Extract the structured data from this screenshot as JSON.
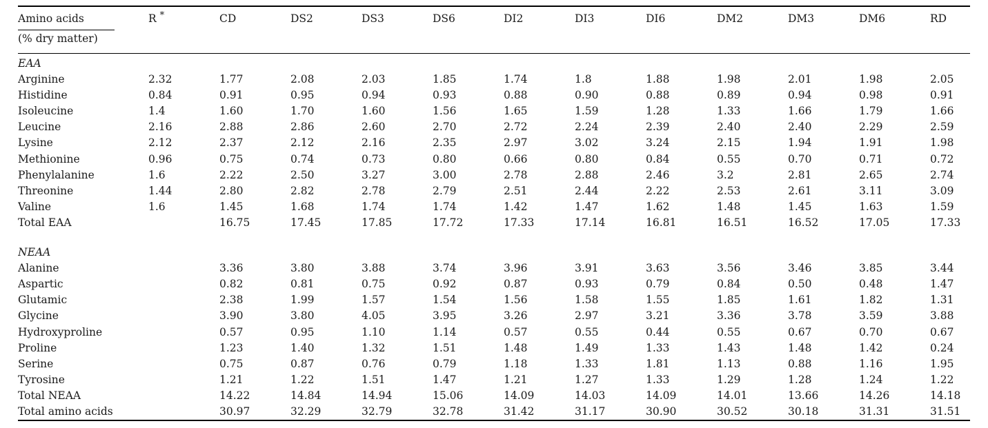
{
  "table": {
    "first_col_header": "Amino acids",
    "first_col_subheader": "(% dry matter)",
    "r_header_base": "R",
    "r_header_mark": "*",
    "column_headers": [
      "R *",
      "CD",
      "DS2",
      "DS3",
      "DS6",
      "DI2",
      "DI3",
      "DI6",
      "DM2",
      "DM3",
      "DM6",
      "RD"
    ],
    "sections": [
      {
        "label": "EAA",
        "rows": [
          {
            "name": "Arginine",
            "values": [
              "2.32",
              "1.77",
              "2.08",
              "2.03",
              "1.85",
              "1.74",
              "1.8",
              "1.88",
              "1.98",
              "2.01",
              "1.98",
              "2.05"
            ]
          },
          {
            "name": "Histidine",
            "values": [
              "0.84",
              "0.91",
              "0.95",
              "0.94",
              "0.93",
              "0.88",
              "0.90",
              "0.88",
              "0.89",
              "0.94",
              "0.98",
              "0.91"
            ]
          },
          {
            "name": "Isoleucine",
            "values": [
              "1.4",
              "1.60",
              "1.70",
              "1.60",
              "1.56",
              "1.65",
              "1.59",
              "1.28",
              "1.33",
              "1.66",
              "1.79",
              "1.66"
            ]
          },
          {
            "name": "Leucine",
            "values": [
              "2.16",
              "2.88",
              "2.86",
              "2.60",
              "2.70",
              "2.72",
              "2.24",
              "2.39",
              "2.40",
              "2.40",
              "2.29",
              "2.59"
            ]
          },
          {
            "name": "Lysine",
            "values": [
              "2.12",
              "2.37",
              "2.12",
              "2.16",
              "2.35",
              "2.97",
              "3.02",
              "3.24",
              "2.15",
              "1.94",
              "1.91",
              "1.98"
            ]
          },
          {
            "name": "Methionine",
            "values": [
              "0.96",
              "0.75",
              "0.74",
              "0.73",
              "0.80",
              "0.66",
              "0.80",
              "0.84",
              "0.55",
              "0.70",
              "0.71",
              "0.72"
            ]
          },
          {
            "name": "Phenylalanine",
            "values": [
              "1.6",
              "2.22",
              "2.50",
              "3.27",
              "3.00",
              "2.78",
              "2.88",
              "2.46",
              "3.2",
              "2.81",
              "2.65",
              "2.74"
            ]
          },
          {
            "name": "Threonine",
            "values": [
              "1.44",
              "2.80",
              "2.82",
              "2.78",
              "2.79",
              "2.51",
              "2.44",
              "2.22",
              "2.53",
              "2.61",
              "3.11",
              "3.09"
            ]
          },
          {
            "name": "Valine",
            "values": [
              "1.6",
              "1.45",
              "1.68",
              "1.74",
              "1.74",
              "1.42",
              "1.47",
              "1.62",
              "1.48",
              "1.45",
              "1.63",
              "1.59"
            ]
          },
          {
            "name": "Total EAA",
            "values": [
              "",
              "16.75",
              "17.45",
              "17.85",
              "17.72",
              "17.33",
              "17.14",
              "16.81",
              "16.51",
              "16.52",
              "17.05",
              "17.33"
            ]
          }
        ]
      },
      {
        "label": "NEAA",
        "rows": [
          {
            "name": "Alanine",
            "values": [
              "",
              "3.36",
              "3.80",
              "3.88",
              "3.74",
              "3.96",
              "3.91",
              "3.63",
              "3.56",
              "3.46",
              "3.85",
              "3.44"
            ]
          },
          {
            "name": "Aspartic",
            "values": [
              "",
              "0.82",
              "0.81",
              "0.75",
              "0.92",
              "0.87",
              "0.93",
              "0.79",
              "0.84",
              "0.50",
              "0.48",
              "1.47"
            ]
          },
          {
            "name": "Glutamic",
            "values": [
              "",
              "2.38",
              "1.99",
              "1.57",
              "1.54",
              "1.56",
              "1.58",
              "1.55",
              "1.85",
              "1.61",
              "1.82",
              "1.31"
            ]
          },
          {
            "name": "Glycine",
            "values": [
              "",
              "3.90",
              "3.80",
              "4.05",
              "3.95",
              "3.26",
              "2.97",
              "3.21",
              "3.36",
              "3.78",
              "3.59",
              "3.88"
            ]
          },
          {
            "name": "Hydroxyproline",
            "values": [
              "",
              "0.57",
              "0.95",
              "1.10",
              "1.14",
              "0.57",
              "0.55",
              "0.44",
              "0.55",
              "0.67",
              "0.70",
              "0.67"
            ]
          },
          {
            "name": "Proline",
            "values": [
              "",
              "1.23",
              "1.40",
              "1.32",
              "1.51",
              "1.48",
              "1.49",
              "1.33",
              "1.43",
              "1.48",
              "1.42",
              "0.24"
            ]
          },
          {
            "name": "Serine",
            "values": [
              "",
              "0.75",
              "0.87",
              "0.76",
              "0.79",
              "1.18",
              "1.33",
              "1.81",
              "1.13",
              "0.88",
              "1.16",
              "1.95"
            ]
          },
          {
            "name": "Tyrosine",
            "values": [
              "",
              "1.21",
              "1.22",
              "1.51",
              "1.47",
              "1.21",
              "1.27",
              "1.33",
              "1.29",
              "1.28",
              "1.24",
              "1.22"
            ]
          },
          {
            "name": "Total NEAA",
            "values": [
              "",
              "14.22",
              "14.84",
              "14.94",
              "15.06",
              "14.09",
              "14.03",
              "14.09",
              "14.01",
              "13.66",
              "14.26",
              "14.18"
            ]
          },
          {
            "name": "Total amino acids",
            "values": [
              "",
              "30.97",
              "32.29",
              "32.79",
              "32.78",
              "31.42",
              "31.17",
              "30.90",
              "30.52",
              "30.18",
              "31.31",
              "31.51"
            ]
          }
        ]
      }
    ]
  }
}
